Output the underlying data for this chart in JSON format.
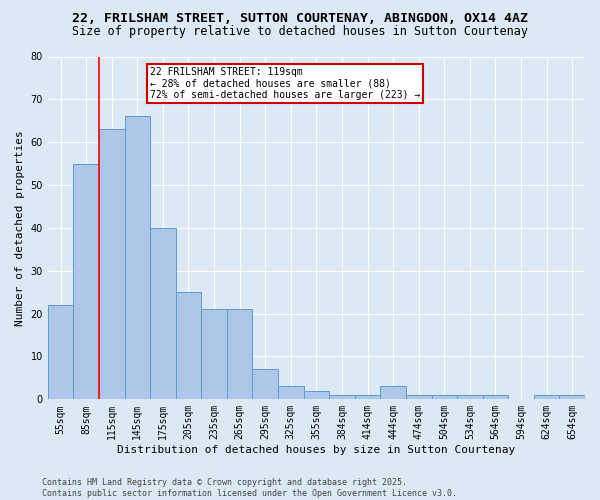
{
  "title1": "22, FRILSHAM STREET, SUTTON COURTENAY, ABINGDON, OX14 4AZ",
  "title2": "Size of property relative to detached houses in Sutton Courtenay",
  "xlabel": "Distribution of detached houses by size in Sutton Courtenay",
  "ylabel": "Number of detached properties",
  "categories": [
    "55sqm",
    "85sqm",
    "115sqm",
    "145sqm",
    "175sqm",
    "205sqm",
    "235sqm",
    "265sqm",
    "295sqm",
    "325sqm",
    "355sqm",
    "384sqm",
    "414sqm",
    "444sqm",
    "474sqm",
    "504sqm",
    "534sqm",
    "564sqm",
    "594sqm",
    "624sqm",
    "654sqm"
  ],
  "values": [
    22,
    55,
    63,
    66,
    40,
    25,
    21,
    21,
    7,
    3,
    2,
    1,
    1,
    3,
    1,
    1,
    1,
    1,
    0,
    1,
    1
  ],
  "bar_color": "#aec6e8",
  "bar_edge_color": "#5b9bd5",
  "red_line_index": 2,
  "annotation_text": "22 FRILSHAM STREET: 119sqm\n← 28% of detached houses are smaller (88)\n72% of semi-detached houses are larger (223) →",
  "annotation_box_color": "#ffffff",
  "annotation_box_edge_color": "#cc0000",
  "ylim": [
    0,
    80
  ],
  "yticks": [
    0,
    10,
    20,
    30,
    40,
    50,
    60,
    70,
    80
  ],
  "bg_color": "#dce9f5",
  "plot_bg_color": "#dce9f5",
  "footer": "Contains HM Land Registry data © Crown copyright and database right 2025.\nContains public sector information licensed under the Open Government Licence v3.0.",
  "title1_fontsize": 9.5,
  "title2_fontsize": 8.5,
  "xlabel_fontsize": 8,
  "ylabel_fontsize": 8,
  "tick_fontsize": 7,
  "footer_fontsize": 6,
  "annotation_fontsize": 7
}
